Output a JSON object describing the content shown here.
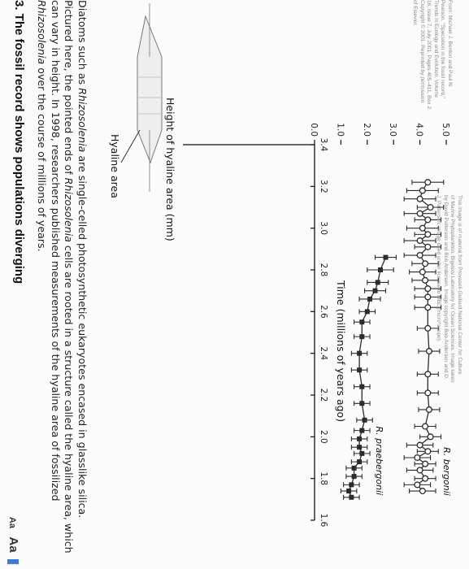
{
  "section": {
    "heading": "3. The fossil record shows populations diverging",
    "intro_parts": [
      "Diatoms such as ",
      "Rhizosolenia",
      " are single-celled photosynthetic eukaryotes encased in glasslike silica. Pictured here, the pointed ends of ",
      "Rhizosolenia",
      " cells are rooted in a structure called the hyaline area, which can vary in height. In 1998, researchers published measurements of the hyaline area of fossilized ",
      "Rhizosolenia",
      " over the course of millions of years."
    ],
    "font_controls": {
      "small": "Aa",
      "large": "Aa"
    }
  },
  "illustration": {
    "label": "Hyaline area"
  },
  "credits": {
    "left_lines": [
      "From: Michael J. Benton and Paul N.",
      "Pearson, \"Speciation in the fossil record,\"",
      "Trends in Ecology and Evolution, Volume",
      "16, Issue 7, July 2001, Pages 405–411, Box 2.",
      "Copyright © 2001. Reprinted by permission",
      "of Elsevier."
    ],
    "right_lines": [
      "This image is of material from Provasoli-Guillard National Center for Culture",
      "of Marine Phytoplankton, Bigelow Laboratory for Ocean Sciences. Image taken",
      "by David Patterson and Bob Andersen. Image copyright Bob Andersen and D.",
      "J. Patterson; image used under license to MBL (micro*scope)."
    ]
  },
  "chart_data": {
    "type": "line",
    "title": "",
    "xlabel": "Time (millions of years ago)",
    "ylabel": "Height of hyaline area (mm)",
    "xlim": [
      3.4,
      1.6
    ],
    "ylim": [
      0,
      5.0
    ],
    "xticks": [
      "3.4",
      "3.2",
      "3.0",
      "2.8",
      "2.6",
      "2.4",
      "2.2",
      "2.0",
      "1.8",
      "1.6"
    ],
    "yticks": [
      "0.0",
      "1.0",
      "2.0",
      "3.0",
      "4.0",
      "5.0"
    ],
    "grid": false,
    "series": [
      {
        "name": "",
        "marker": "open-circle",
        "color": "#2b2b2b",
        "points": [
          {
            "x": 3.22,
            "y": 4.3,
            "err": 0.6
          },
          {
            "x": 3.18,
            "y": 4.1,
            "err": 0.6
          },
          {
            "x": 3.14,
            "y": 4.0,
            "err": 0.6
          },
          {
            "x": 3.1,
            "y": 4.4,
            "err": 0.5
          },
          {
            "x": 3.07,
            "y": 4.0,
            "err": 0.6
          },
          {
            "x": 3.04,
            "y": 4.3,
            "err": 0.5
          },
          {
            "x": 3.0,
            "y": 4.1,
            "err": 0.6
          },
          {
            "x": 2.97,
            "y": 4.3,
            "err": 0.5
          },
          {
            "x": 2.94,
            "y": 4.0,
            "err": 0.6
          },
          {
            "x": 2.91,
            "y": 4.3,
            "err": 0.5
          },
          {
            "x": 2.87,
            "y": 4.0,
            "err": 0.6
          },
          {
            "x": 2.83,
            "y": 4.2,
            "err": 0.5
          },
          {
            "x": 2.79,
            "y": 4.1,
            "err": 0.5
          },
          {
            "x": 2.75,
            "y": 4.2,
            "err": 0.5
          },
          {
            "x": 2.71,
            "y": 4.3,
            "err": 0.5
          },
          {
            "x": 2.67,
            "y": 4.3,
            "err": 0.5
          },
          {
            "x": 2.62,
            "y": 4.3,
            "err": 0.5
          },
          {
            "x": 2.52,
            "y": 4.3,
            "err": 0.4
          },
          {
            "x": 2.41,
            "y": 4.35,
            "err": 0.4
          },
          {
            "x": 2.3,
            "y": 4.3,
            "err": 0.4
          },
          {
            "x": 2.21,
            "y": 4.3,
            "err": 0.4
          },
          {
            "x": 2.13,
            "y": 4.35,
            "err": 0.4
          },
          {
            "x": 2.05,
            "y": 4.2,
            "err": 0.4
          },
          {
            "x": 2.0,
            "y": 4.4,
            "err": 0.4
          },
          {
            "x": 1.96,
            "y": 4.0,
            "err": 0.5
          },
          {
            "x": 1.93,
            "y": 4.3,
            "err": 0.4
          },
          {
            "x": 1.9,
            "y": 3.9,
            "err": 0.5
          },
          {
            "x": 1.87,
            "y": 4.2,
            "err": 0.4
          },
          {
            "x": 1.84,
            "y": 4.0,
            "err": 0.5
          },
          {
            "x": 1.8,
            "y": 4.2,
            "err": 0.4
          },
          {
            "x": 1.77,
            "y": 3.9,
            "err": 0.5
          },
          {
            "x": 1.74,
            "y": 4.1,
            "err": 0.5
          }
        ]
      },
      {
        "name": "",
        "marker": "filled-square",
        "color": "#2b2b2b",
        "points": [
          {
            "x": 2.86,
            "y": 2.7,
            "err": 0.4
          },
          {
            "x": 2.8,
            "y": 2.5,
            "err": 0.5
          },
          {
            "x": 2.74,
            "y": 2.4,
            "err": 0.4
          },
          {
            "x": 2.7,
            "y": 2.3,
            "err": 0.4
          },
          {
            "x": 2.66,
            "y": 2.1,
            "err": 0.4
          },
          {
            "x": 2.6,
            "y": 2.0,
            "err": 0.3
          },
          {
            "x": 2.55,
            "y": 1.8,
            "err": 0.3
          },
          {
            "x": 2.48,
            "y": 1.8,
            "err": 0.3
          },
          {
            "x": 2.4,
            "y": 1.7,
            "err": 0.3
          },
          {
            "x": 2.32,
            "y": 1.7,
            "err": 0.3
          },
          {
            "x": 2.24,
            "y": 1.8,
            "err": 0.3
          },
          {
            "x": 2.16,
            "y": 1.8,
            "err": 0.3
          },
          {
            "x": 2.08,
            "y": 1.9,
            "err": 0.3
          },
          {
            "x": 2.03,
            "y": 1.8,
            "err": 0.3
          },
          {
            "x": 1.99,
            "y": 1.7,
            "err": 0.3
          },
          {
            "x": 1.95,
            "y": 1.7,
            "err": 0.3
          },
          {
            "x": 1.92,
            "y": 1.8,
            "err": 0.3
          },
          {
            "x": 1.88,
            "y": 1.7,
            "err": 0.3
          },
          {
            "x": 1.85,
            "y": 1.5,
            "err": 0.3
          },
          {
            "x": 1.81,
            "y": 1.5,
            "err": 0.3
          },
          {
            "x": 1.77,
            "y": 1.4,
            "err": 0.3
          },
          {
            "x": 1.74,
            "y": 1.3,
            "err": 0.3
          },
          {
            "x": 1.71,
            "y": 1.4,
            "err": 0.3
          }
        ]
      }
    ],
    "annotations": [
      {
        "text": "R. bergonii",
        "style": "italic",
        "x": 1.95,
        "y": 4.9
      },
      {
        "text": "R. praebergonii",
        "style": "italic",
        "x": 2.05,
        "y": 2.35
      }
    ]
  }
}
